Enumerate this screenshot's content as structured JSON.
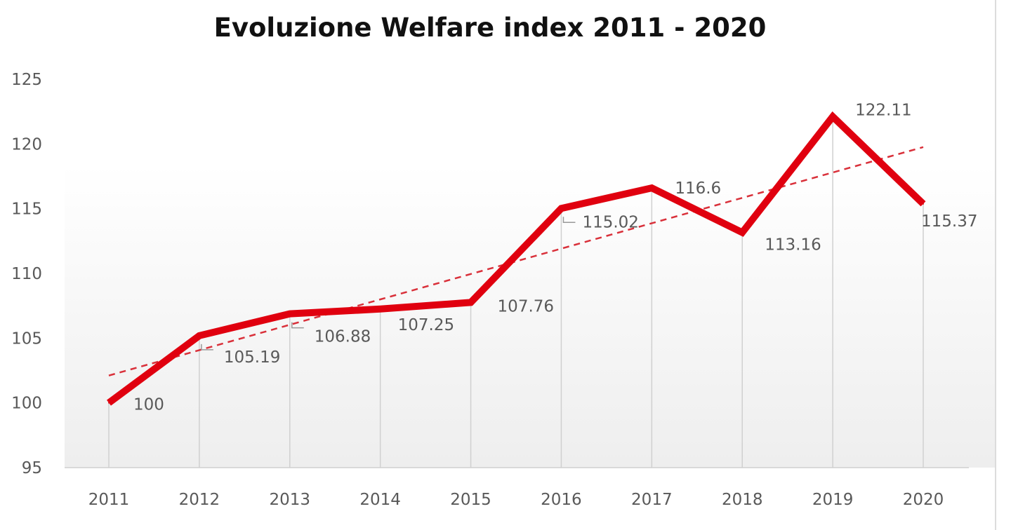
{
  "chart_data": {
    "type": "line",
    "title": "Evoluzione Welfare index 2011 - 2020",
    "xlabel": "",
    "ylabel": "",
    "categories": [
      "2011",
      "2012",
      "2013",
      "2014",
      "2015",
      "2016",
      "2017",
      "2018",
      "2019",
      "2020"
    ],
    "series": [
      {
        "values": [
          100,
          105.19,
          106.88,
          107.25,
          107.76,
          115.02,
          116.6,
          113.16,
          122.11,
          115.37
        ],
        "data_labels": [
          "100",
          "105.19",
          "106.88",
          "107.25",
          "107.76",
          "115.02",
          "116.6",
          "113.16",
          "122.11",
          "115.37"
        ],
        "color": "#e0000f"
      }
    ],
    "trendline": {
      "type": "linear",
      "style": "dashed",
      "color": "#d9303a"
    },
    "drop_lines": true,
    "ylim": [
      95,
      125
    ],
    "yticks": [
      "95",
      "100",
      "105",
      "110",
      "115",
      "120",
      "125"
    ],
    "grid": false,
    "legend": "none"
  }
}
